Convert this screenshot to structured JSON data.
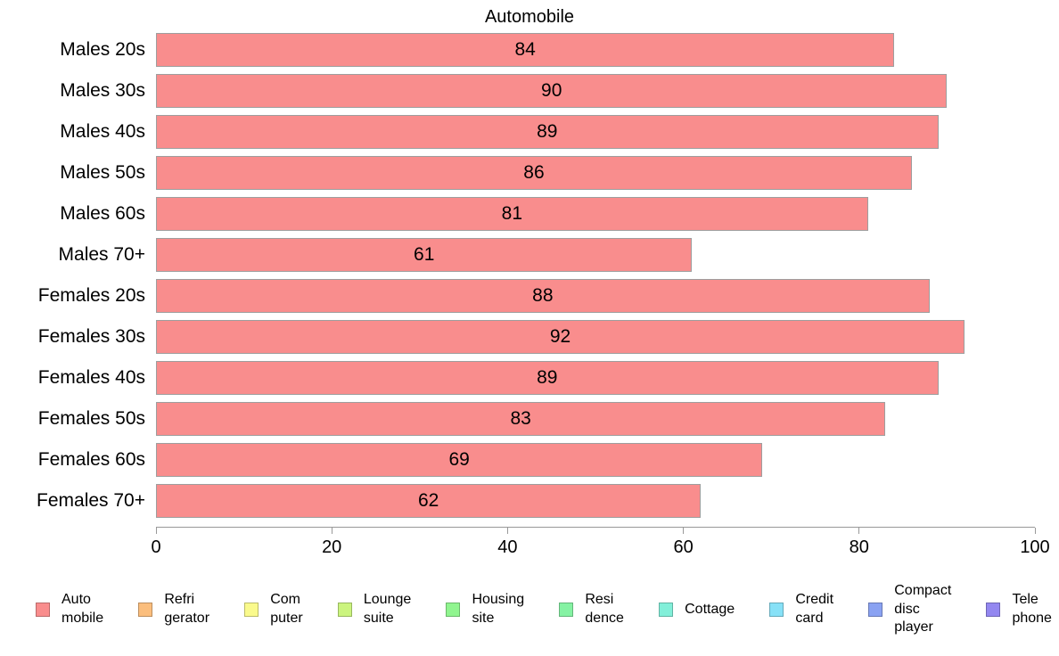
{
  "chart_data": {
    "type": "bar",
    "orientation": "horizontal",
    "title": "Automobile",
    "categories": [
      "Males 20s",
      "Males 30s",
      "Males 40s",
      "Males 50s",
      "Males 60s",
      "Males 70+",
      "Females 20s",
      "Females 30s",
      "Females 40s",
      "Females 50s",
      "Females 60s",
      "Females 70+"
    ],
    "values": [
      84,
      90,
      89,
      86,
      81,
      61,
      88,
      92,
      89,
      83,
      69,
      62
    ],
    "value_labels_position": "center-of-bar",
    "xlim": [
      0,
      100
    ],
    "x_ticks": [
      0,
      20,
      40,
      60,
      80,
      100
    ],
    "grid": "off",
    "bar_color": "#F98D8D",
    "bar_border_color": "#9E9E9E",
    "axis_color": "#999999",
    "legend_position": "bottom",
    "legend": [
      {
        "label": "Auto\nmobile",
        "color": "#F98D8D",
        "border": "#BA6A6A"
      },
      {
        "label": "Refri\ngerator",
        "color": "#FBBE7D",
        "border": "#BC8E5E"
      },
      {
        "label": "Com\nputer",
        "color": "#FAFA8C",
        "border": "#BBBB69"
      },
      {
        "label": "Lounge\nsuite",
        "color": "#CBF47E",
        "border": "#98B75F"
      },
      {
        "label": "Housing\nsite",
        "color": "#90F58F",
        "border": "#6CB86B"
      },
      {
        "label": "Resi\ndence",
        "color": "#85F2A3",
        "border": "#64B57A"
      },
      {
        "label": "Cottage",
        "color": "#82EFD9",
        "border": "#61B3A3"
      },
      {
        "label": "Credit\ncard",
        "color": "#87E1F7",
        "border": "#65A9B9"
      },
      {
        "label": "Compact\ndisc\nplayer",
        "color": "#8AA2F2",
        "border": "#6879B5"
      },
      {
        "label": "Tele\nphone",
        "color": "#9387F0",
        "border": "#6E65B4"
      }
    ]
  }
}
